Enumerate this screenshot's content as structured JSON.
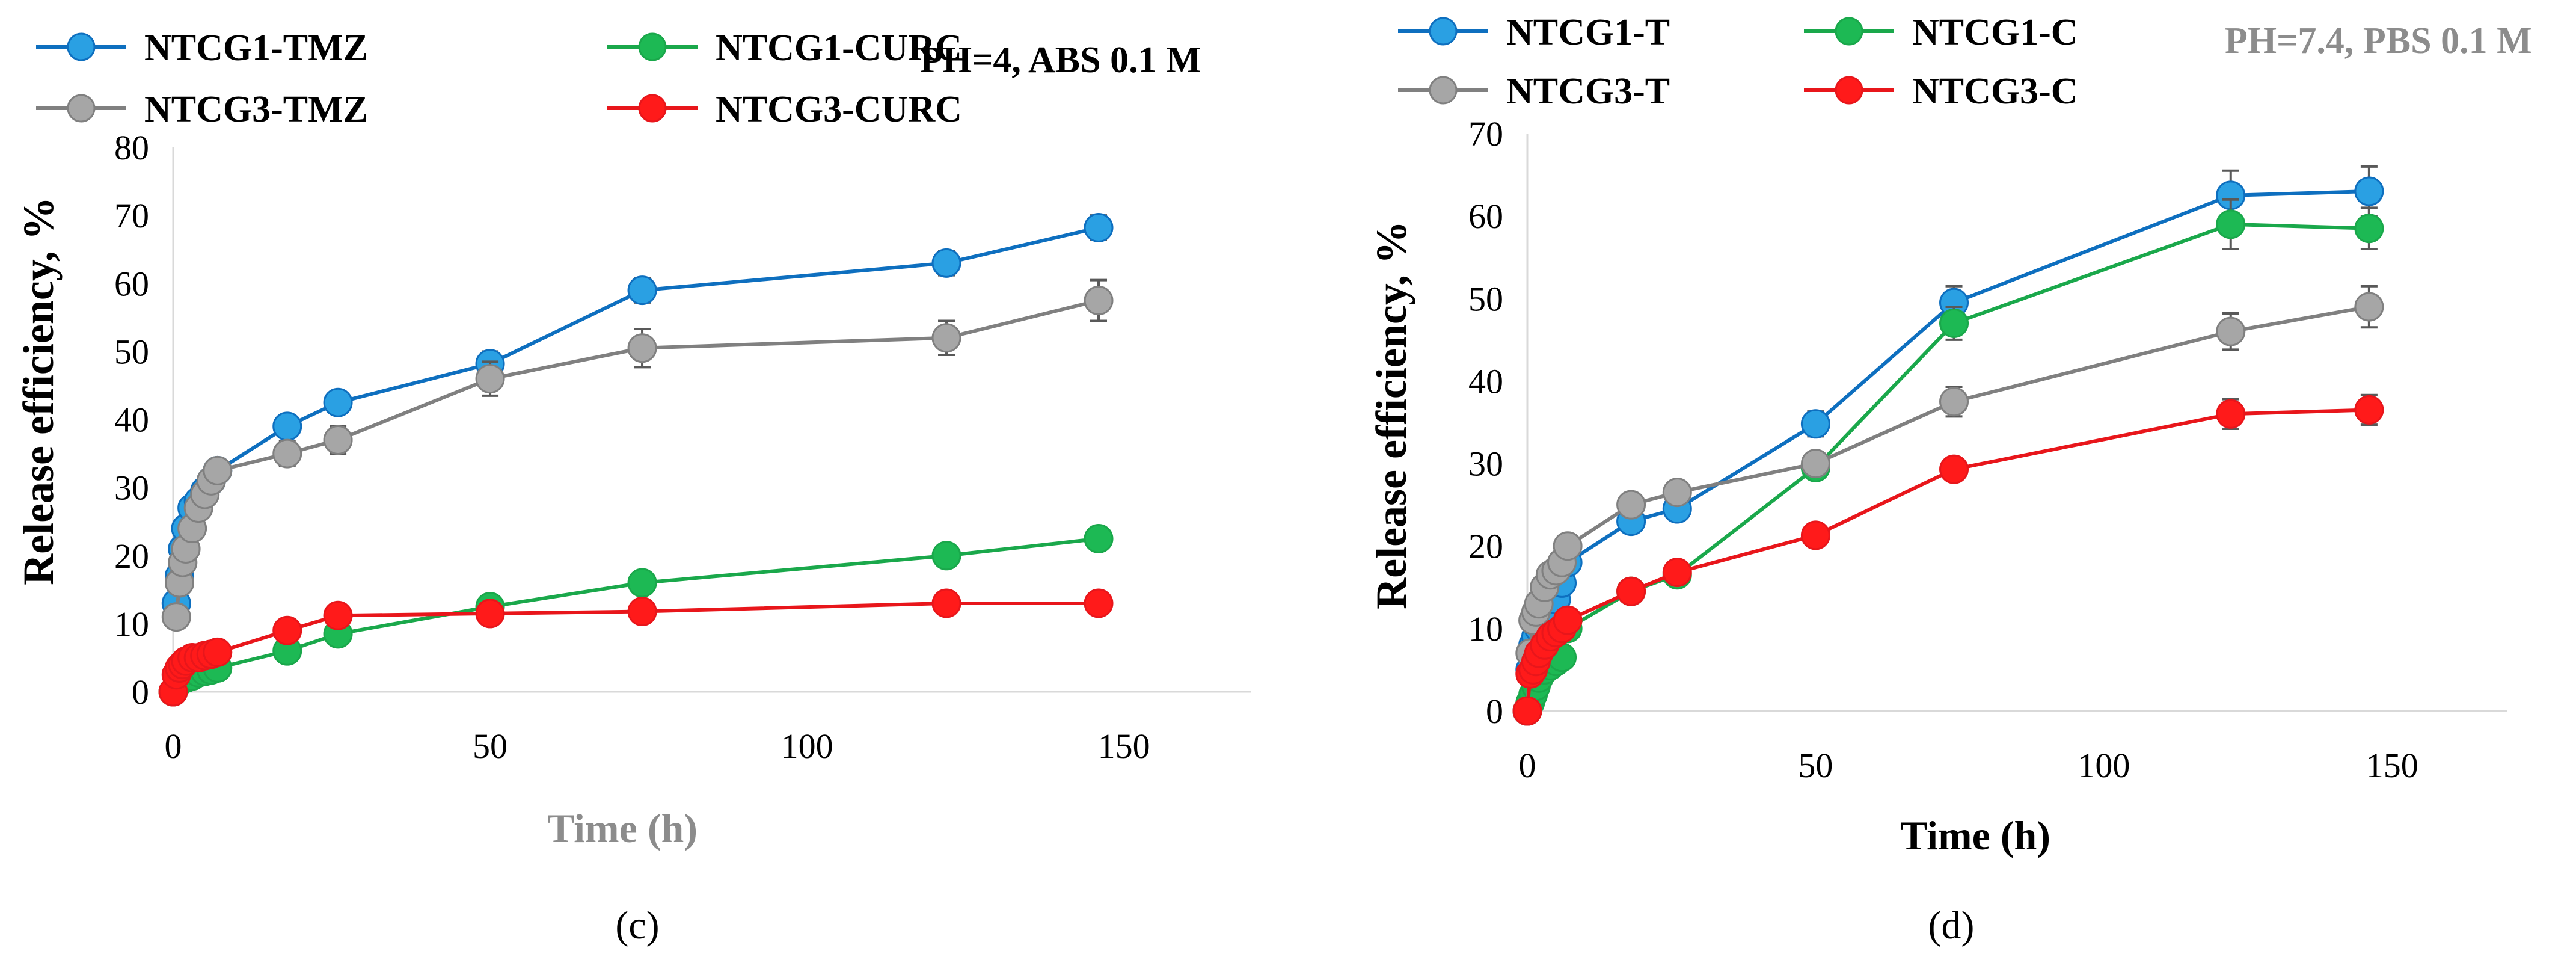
{
  "chart_data": [
    {
      "panel_label": "(c)",
      "type": "line",
      "annotation": "PH=4, ABS 0.1 M",
      "xlabel": "Time (h)",
      "ylabel": "Release efficiency, %",
      "xlim": [
        0,
        170
      ],
      "ylim": [
        0,
        80
      ],
      "x_ticks": [
        0,
        50,
        100,
        150
      ],
      "y_ticks": [
        0,
        10,
        20,
        30,
        40,
        50,
        60,
        70,
        80
      ],
      "grid": false,
      "legend_position": "top",
      "series": [
        {
          "name": "NTCG1-TMZ",
          "color": "#0E6FBF",
          "marker_color": "#2AA0E3",
          "x": [
            0.5,
            1,
            1.5,
            2,
            3,
            4,
            5,
            6,
            7,
            18,
            26,
            50,
            74,
            122,
            146
          ],
          "y": [
            13,
            17,
            21,
            24,
            27,
            28,
            29.5,
            31,
            32.5,
            39,
            42.5,
            48.2,
            59,
            63,
            68.2
          ],
          "error": [
            1.2,
            1.2,
            1.2,
            1.2,
            1.2,
            1.2,
            1.2,
            1.2,
            1.2,
            1.5,
            1.5,
            1.8,
            1.8,
            1.8,
            1.8
          ]
        },
        {
          "name": "NTCG3-TMZ",
          "color": "#808080",
          "marker_color": "#A6A6A6",
          "x": [
            0.5,
            1,
            1.5,
            2,
            3,
            4,
            5,
            6,
            7,
            18,
            26,
            50,
            74,
            122,
            146
          ],
          "y": [
            11,
            16,
            19,
            21,
            24,
            27,
            29,
            31,
            32.5,
            35,
            37,
            46,
            50.5,
            52,
            57.5
          ],
          "error": [
            1,
            1,
            1,
            1,
            1.2,
            1.2,
            1.2,
            1.2,
            1.5,
            1.8,
            2,
            2.5,
            2.8,
            2.5,
            3
          ]
        },
        {
          "name": "NTCG1-CURC",
          "color": "#1AA84B",
          "marker_color": "#1DB954",
          "x": [
            0,
            1,
            2,
            3,
            4,
            5,
            6,
            7,
            18,
            26,
            50,
            74,
            122,
            146
          ],
          "y": [
            0,
            1.5,
            2,
            2.3,
            2.8,
            3,
            3.2,
            3.5,
            6,
            8.5,
            12.5,
            16,
            20,
            22.5
          ],
          "error": [
            0.3,
            0.3,
            0.3,
            0.3,
            0.3,
            0.3,
            0.3,
            0.3,
            0.5,
            0.5,
            0.6,
            0.6,
            0.8,
            0.8
          ]
        },
        {
          "name": "NTCG3-CURC",
          "color": "#E8161B",
          "marker_color": "#FF1A1A",
          "x": [
            0,
            0.5,
            1,
            1.5,
            2,
            3,
            4,
            5,
            6,
            7,
            18,
            26,
            50,
            74,
            122,
            146
          ],
          "y": [
            0,
            2.5,
            3.5,
            4,
            4.5,
            5,
            5,
            5.3,
            5.5,
            5.8,
            9,
            11.2,
            11.5,
            11.8,
            13,
            13
          ],
          "error": [
            0.2,
            0.3,
            0.3,
            0.3,
            0.3,
            0.3,
            0.3,
            0.3,
            0.3,
            0.3,
            0.4,
            0.4,
            0.4,
            0.4,
            0.5,
            0.5
          ]
        }
      ]
    },
    {
      "panel_label": "(d)",
      "type": "line",
      "annotation": "PH=7.4, PBS 0.1 M",
      "xlabel": "Time (h)",
      "ylabel": "Release efficiency, %",
      "xlim": [
        0,
        170
      ],
      "ylim": [
        0,
        70
      ],
      "x_ticks": [
        0,
        50,
        100,
        150
      ],
      "y_ticks": [
        0,
        10,
        20,
        30,
        40,
        50,
        60,
        70
      ],
      "grid": false,
      "legend_position": "top",
      "series": [
        {
          "name": "NTCG1-T",
          "color": "#0E6FBF",
          "marker_color": "#2AA0E3",
          "x": [
            0,
            0.5,
            1,
            1.5,
            2,
            3,
            4,
            5,
            6,
            7,
            18,
            26,
            50,
            74,
            122,
            146
          ],
          "y": [
            0,
            5,
            8,
            9,
            10,
            11,
            12,
            13.5,
            15.5,
            18,
            23,
            24.5,
            34.8,
            49.5,
            62.5,
            63
          ],
          "error": [
            0.3,
            0.5,
            0.5,
            0.5,
            0.5,
            0.5,
            0.5,
            0.6,
            0.6,
            0.8,
            1,
            1,
            1.5,
            2,
            3,
            3
          ]
        },
        {
          "name": "NTCG1-C",
          "color": "#1AA84B",
          "marker_color": "#1DB954",
          "x": [
            0,
            0.5,
            1,
            1.5,
            2,
            3,
            4,
            5,
            6,
            7,
            18,
            26,
            50,
            74,
            122,
            146
          ],
          "y": [
            0,
            1,
            2,
            3,
            4,
            5,
            5.5,
            6,
            6.5,
            10,
            14.5,
            16.5,
            29.5,
            47,
            59,
            58.5
          ],
          "error": [
            0.2,
            0.3,
            0.3,
            0.3,
            0.3,
            0.3,
            0.3,
            0.4,
            0.4,
            0.5,
            0.8,
            0.8,
            1.2,
            2,
            3,
            2.5
          ]
        },
        {
          "name": "NTCG3-T",
          "color": "#808080",
          "marker_color": "#A6A6A6",
          "x": [
            0,
            0.5,
            1,
            1.5,
            2,
            3,
            4,
            5,
            6,
            7,
            18,
            26,
            50,
            74,
            122,
            146
          ],
          "y": [
            0,
            7,
            11,
            12,
            13,
            15,
            16.5,
            17,
            18,
            20,
            25,
            26.5,
            30,
            37.5,
            46,
            49
          ],
          "error": [
            0.3,
            0.5,
            0.5,
            0.5,
            0.6,
            0.6,
            0.6,
            0.6,
            0.7,
            0.8,
            1,
            1,
            1.3,
            1.8,
            2.2,
            2.5
          ]
        },
        {
          "name": "NTCG3-C",
          "color": "#E8161B",
          "marker_color": "#FF1A1A",
          "x": [
            0,
            0.5,
            1,
            1.5,
            2,
            3,
            4,
            5,
            6,
            7,
            18,
            26,
            50,
            74,
            122,
            146
          ],
          "y": [
            0,
            4.5,
            5,
            6,
            7,
            8,
            9,
            9.5,
            10,
            11,
            14.5,
            16.8,
            21.3,
            29.3,
            36,
            36.5
          ],
          "error": [
            0.2,
            0.3,
            0.3,
            0.3,
            0.3,
            0.4,
            0.4,
            0.4,
            0.4,
            0.5,
            0.6,
            0.6,
            0.8,
            1.2,
            1.8,
            1.8
          ]
        }
      ]
    }
  ]
}
